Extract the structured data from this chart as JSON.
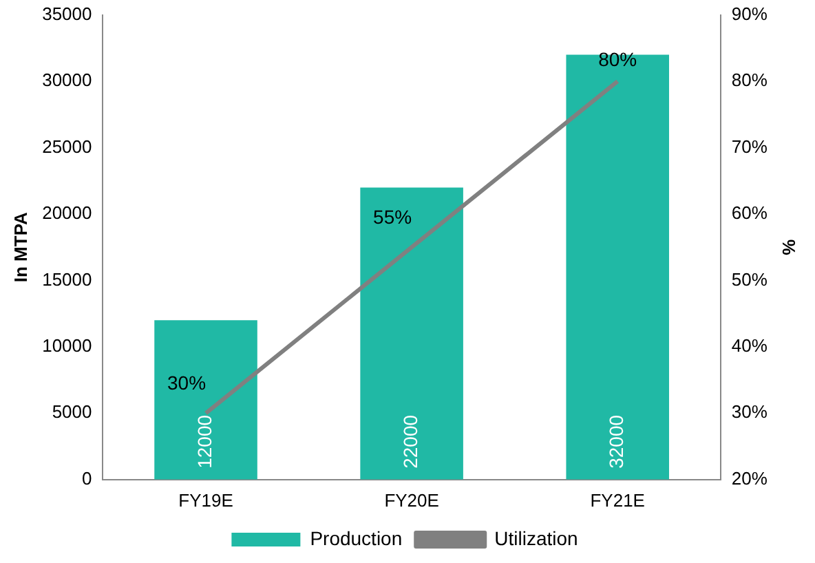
{
  "chart_data": {
    "type": "bar",
    "categories": [
      "FY19E",
      "FY20E",
      "FY21E"
    ],
    "ylabel": "In MTPA",
    "y2label": "%",
    "ylim": [
      0,
      35000
    ],
    "yticks": [
      0,
      5000,
      10000,
      15000,
      20000,
      25000,
      30000,
      35000
    ],
    "y2lim": [
      20,
      90
    ],
    "y2ticks": [
      {
        "value": 20,
        "label": "20%"
      },
      {
        "value": 30,
        "label": "30%"
      },
      {
        "value": 40,
        "label": "40%"
      },
      {
        "value": 50,
        "label": "50%"
      },
      {
        "value": 60,
        "label": "60%"
      },
      {
        "value": 70,
        "label": "70%"
      },
      {
        "value": 80,
        "label": "80%"
      },
      {
        "value": 90,
        "label": "90%"
      }
    ],
    "grid": false,
    "legend": "bottom",
    "marker": "none",
    "series": [
      {
        "name": "Production",
        "color": "#20b9a5",
        "values": [
          12000,
          22000,
          32000
        ],
        "value_labels": [
          "12000",
          "22000",
          "32000"
        ]
      },
      {
        "name": "Utilization",
        "type": "line",
        "axis": "y2",
        "color": "#808080",
        "values": [
          30,
          55,
          80
        ],
        "value_labels": [
          "30%",
          "55%",
          "80%"
        ]
      }
    ]
  }
}
